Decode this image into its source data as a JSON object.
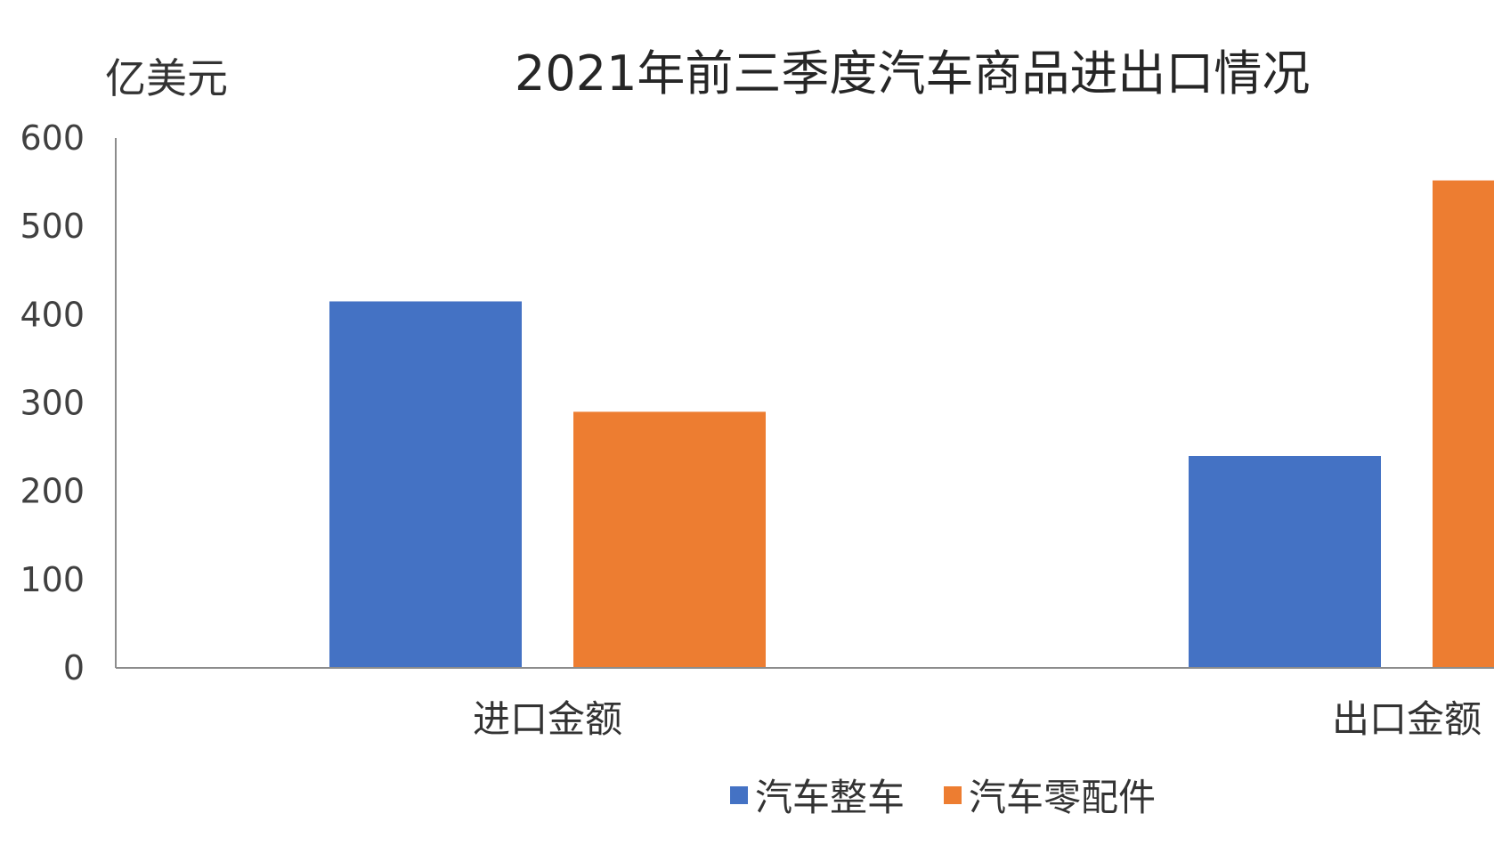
{
  "chart_data": {
    "type": "bar",
    "title": "2021年前三季度汽车商品进出口情况",
    "ylabel": "亿美元",
    "xlabel": "",
    "categories": [
      "进口金额",
      "出口金额"
    ],
    "ylim": [
      0,
      600
    ],
    "yticks": [
      0,
      100,
      200,
      300,
      400,
      500,
      600
    ],
    "series": [
      {
        "name": "汽车整车",
        "color": "#4472C4",
        "values": [
          415,
          240
        ]
      },
      {
        "name": "汽车零配件",
        "color": "#ED7D31",
        "values": [
          290,
          552
        ]
      }
    ],
    "grid": false,
    "legend": "bottom"
  }
}
